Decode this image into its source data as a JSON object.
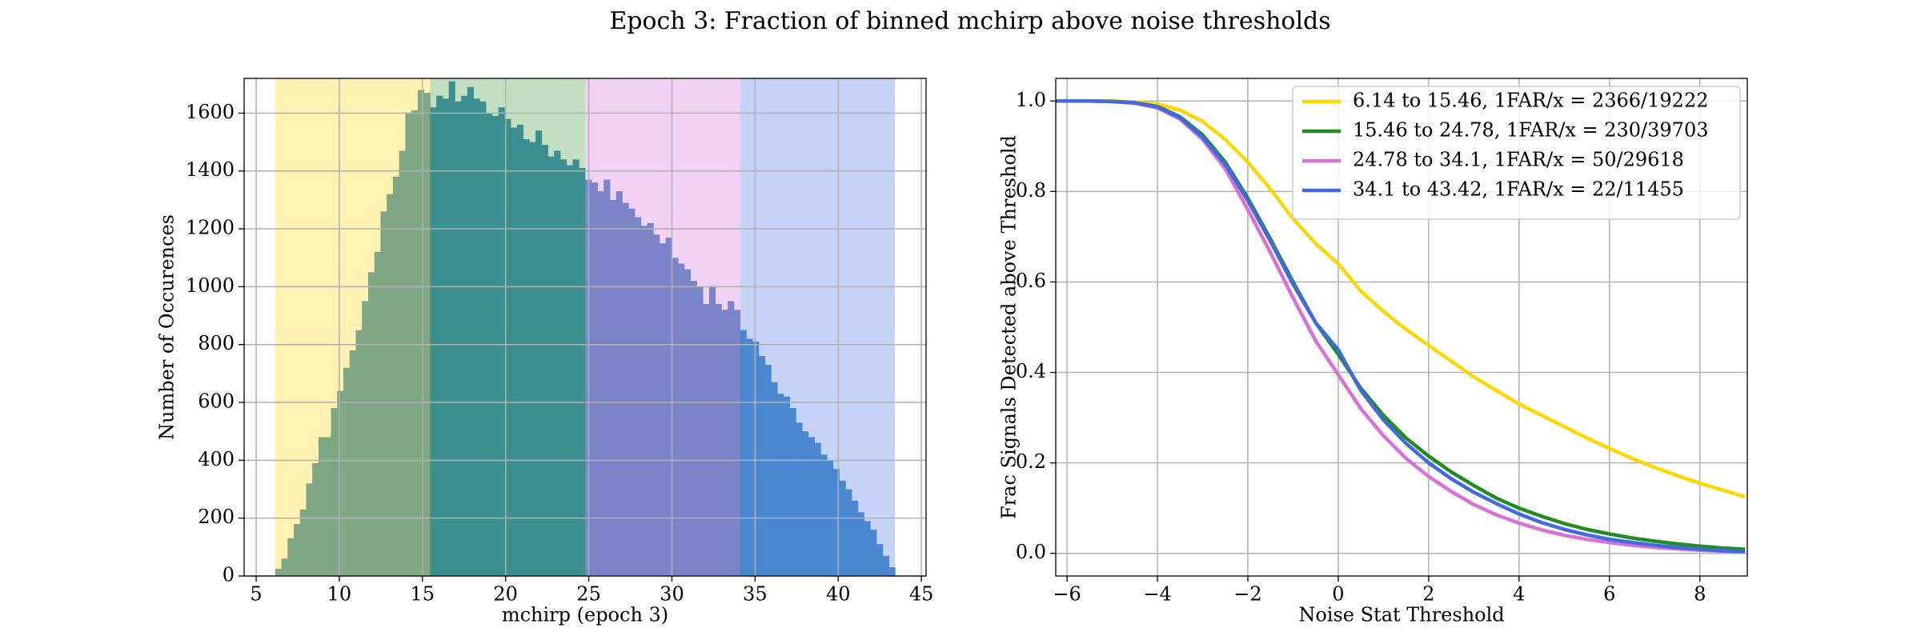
{
  "title": "Epoch 3: Fraction of binned mchirp above noise thresholds",
  "chart_data": [
    {
      "type": "histogram",
      "xlabel": "mchirp (epoch 3)",
      "ylabel": "Number of Occurences",
      "xlim": [
        4.276,
        45.284
      ],
      "ylim": [
        0,
        1720
      ],
      "xticks": [
        5,
        10,
        15,
        20,
        25,
        30,
        35,
        40,
        45
      ],
      "yticks": [
        0,
        200,
        400,
        600,
        800,
        1000,
        1200,
        1400,
        1600
      ],
      "grid": true,
      "spans": [
        {
          "start": 6.14,
          "end": 15.46,
          "color": "#fff2b2"
        },
        {
          "start": 15.46,
          "end": 24.78,
          "color": "#c2dfc2"
        },
        {
          "start": 24.78,
          "end": 34.1,
          "color": "#f2d2f2"
        },
        {
          "start": 34.1,
          "end": 43.42,
          "color": "#c6d2f6"
        }
      ],
      "series": [
        {
          "color": "#80a784",
          "bins": [
            6.14,
            6.5128,
            6.8856,
            7.2584,
            7.6312,
            8.004,
            8.3768,
            8.7496,
            9.1224,
            9.4952,
            9.868,
            10.2408,
            10.6136,
            10.9864,
            11.3592,
            11.732,
            12.1048,
            12.4776,
            12.8504,
            13.2232,
            13.596,
            13.9688,
            14.3416,
            14.7144,
            15.0872,
            15.46
          ],
          "values": [
            25,
            60,
            130,
            180,
            230,
            320,
            390,
            480,
            480,
            580,
            640,
            720,
            780,
            850,
            950,
            1050,
            1120,
            1260,
            1320,
            1380,
            1470,
            1600,
            1610,
            1680,
            1670
          ]
        },
        {
          "color": "#3d8f8f",
          "bins": [
            15.46,
            15.8328,
            16.2056,
            16.5784,
            16.9512,
            17.324,
            17.6968,
            18.0696,
            18.4424,
            18.8152,
            19.188,
            19.5608,
            19.9336,
            20.3064,
            20.6792,
            21.052,
            21.4248,
            21.7976,
            22.1704,
            22.5432,
            22.916,
            23.2888,
            23.6616,
            24.0344,
            24.4072,
            24.78
          ],
          "values": [
            1620,
            1660,
            1650,
            1710,
            1640,
            1660,
            1690,
            1650,
            1640,
            1600,
            1590,
            1620,
            1580,
            1550,
            1560,
            1510,
            1500,
            1540,
            1490,
            1450,
            1470,
            1440,
            1420,
            1440,
            1410
          ]
        },
        {
          "color": "#7a84c6",
          "bins": [
            24.78,
            25.1528,
            25.5256,
            25.8984,
            26.2712,
            26.644,
            27.0168,
            27.3896,
            27.7624,
            28.1352,
            28.508,
            28.8808,
            29.2536,
            29.6264,
            29.9992,
            30.372,
            30.7448,
            31.1176,
            31.4904,
            31.8632,
            32.236,
            32.6088,
            32.9816,
            33.3544,
            33.7272,
            34.1
          ],
          "values": [
            1370,
            1360,
            1330,
            1370,
            1300,
            1330,
            1290,
            1270,
            1240,
            1210,
            1220,
            1180,
            1150,
            1170,
            1100,
            1080,
            1060,
            1020,
            1000,
            940,
            1000,
            940,
            920,
            950,
            920
          ]
        },
        {
          "color": "#4a87cf",
          "bins": [
            34.1,
            34.4728,
            34.8456,
            35.2184,
            35.5912,
            35.964,
            36.3368,
            36.7096,
            37.0824,
            37.4552,
            37.828,
            38.2008,
            38.5736,
            38.9464,
            39.3192,
            39.692,
            40.0648,
            40.4376,
            40.8104,
            41.1832,
            41.556,
            41.9288,
            42.3016,
            42.6744,
            43.0472,
            43.42
          ],
          "values": [
            850,
            820,
            810,
            760,
            730,
            670,
            630,
            620,
            580,
            530,
            500,
            480,
            460,
            420,
            400,
            370,
            330,
            300,
            260,
            220,
            190,
            160,
            110,
            70,
            30
          ]
        }
      ]
    },
    {
      "type": "line",
      "xlabel": "Noise Stat Threshold",
      "ylabel": "Frac Signals Detected above Threshold",
      "xlim": [
        -6.25,
        9.05
      ],
      "ylim": [
        -0.05,
        1.05
      ],
      "xticks": [
        {
          "value": -6,
          "label": "−6"
        },
        {
          "value": -4,
          "label": "−4"
        },
        {
          "value": -2,
          "label": "−2"
        },
        0,
        2,
        4,
        6,
        8
      ],
      "yticks": [
        {
          "value": 0,
          "label": "0.0"
        },
        0.2,
        0.4,
        0.6,
        0.8,
        {
          "value": 1,
          "label": "1.0"
        }
      ],
      "grid": true,
      "legend": "upper right",
      "x": [
        -6.25,
        -5.5,
        -5,
        -4.5,
        -4,
        -3.5,
        -3,
        -2.5,
        -2,
        -1.5,
        -1,
        -0.5,
        0,
        0.5,
        1,
        1.5,
        2,
        2.5,
        3,
        3.5,
        4,
        4.5,
        5,
        5.5,
        6,
        6.5,
        7,
        7.5,
        8,
        8.5,
        9
      ],
      "series": [
        {
          "name": "6.14 to 15.46, 1FAR/x = 2366/19222",
          "color": "#ffd700",
          "values": [
            1,
            1,
            1,
            0.998,
            0.993,
            0.98,
            0.955,
            0.915,
            0.865,
            0.805,
            0.74,
            0.685,
            0.64,
            0.58,
            0.535,
            0.495,
            0.46,
            0.425,
            0.39,
            0.36,
            0.33,
            0.305,
            0.28,
            0.255,
            0.232,
            0.21,
            0.19,
            0.172,
            0.155,
            0.14,
            0.125
          ]
        },
        {
          "name": "15.46 to 24.78, 1FAR/x = 230/39703",
          "color": "#228b22",
          "values": [
            1,
            1,
            0.999,
            0.996,
            0.988,
            0.965,
            0.925,
            0.865,
            0.785,
            0.695,
            0.6,
            0.51,
            0.44,
            0.365,
            0.305,
            0.255,
            0.215,
            0.18,
            0.15,
            0.122,
            0.1,
            0.082,
            0.066,
            0.053,
            0.043,
            0.034,
            0.027,
            0.021,
            0.016,
            0.012,
            0.009
          ]
        },
        {
          "name": "24.78 to 34.1, 1FAR/x = 50/29618",
          "color": "#da70d6",
          "values": [
            1,
            1,
            0.999,
            0.995,
            0.985,
            0.96,
            0.915,
            0.85,
            0.76,
            0.665,
            0.565,
            0.47,
            0.395,
            0.32,
            0.26,
            0.21,
            0.17,
            0.137,
            0.108,
            0.085,
            0.067,
            0.052,
            0.04,
            0.031,
            0.024,
            0.018,
            0.013,
            0.01,
            0.007,
            0.005,
            0.003
          ]
        },
        {
          "name": "34.1 to 43.42, 1FAR/x = 22/11455",
          "color": "#4169e1",
          "values": [
            1,
            1,
            0.999,
            0.996,
            0.987,
            0.963,
            0.92,
            0.86,
            0.78,
            0.69,
            0.595,
            0.51,
            0.45,
            0.36,
            0.295,
            0.243,
            0.2,
            0.165,
            0.135,
            0.11,
            0.087,
            0.068,
            0.053,
            0.041,
            0.031,
            0.024,
            0.018,
            0.013,
            0.009,
            0.006,
            0.004
          ]
        }
      ]
    }
  ]
}
